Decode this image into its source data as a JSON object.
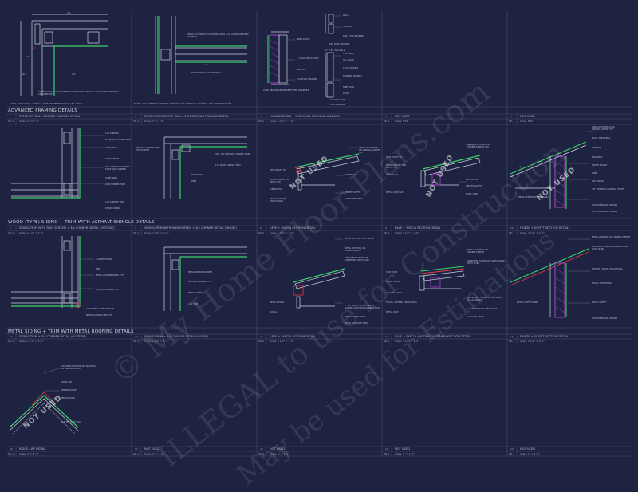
{
  "sections": {
    "advanced_framing": "ADVANCED FRAMING DETAILS",
    "wood_siding": "WOOD (TYPE) SIDING + TRIM WITH ASPHALT SHINGLE DETAILS",
    "metal_siding": "METAL SIDING + TRIM WITH METAL ROOFING DETAILS"
  },
  "row1": {
    "titles": [
      "EXTERIOR WALL CORNER FRAMING DETAIL",
      "EXTERIOR/INTERIOR WALL INTERSECTION FRAMING DETAIL",
      "LOAD BEARING + NON-LOAD BEARING HEADERS",
      "NOT USED",
      "NOT USED"
    ],
    "scales": [
      "Scale: 1\" = 1'-0\"",
      "Scale: 1\" = 1'-0\"",
      "Scale: 1 1/2\" = 1'-0\"",
      "Scale: NTS",
      "Scale: NTS"
    ],
    "numbers": [
      "1",
      "2",
      "3",
      "4",
      "5"
    ],
    "sheet_ref": "SD-1",
    "note_left": "NOTE: STRUCTURAL DETAILS TAKE PRECEDENT FOR FILE LAYOUT",
    "note_mid": "NOTE: USE WHETHER FRAMING METHOD FOR INTERIOR LEDGERS AND INTERSECTIONS",
    "corner_dims": [
      "4x1",
      "6x1",
      "4x1",
      "4x1"
    ],
    "corner_note": "CONTINUOUS ALONG ASSEMBLY WITH PRODS HOUSE AND FRAMING BOTH AS APPROPRIATE",
    "inter_labels": [
      "USE 2x4 STUDS FOR PLUMBING WALLS OR AS REQUIRED BY EXTERIOR",
      "1'-4\"",
      "HOLDOWN, IF OCC VERTICAL"
    ],
    "header_labels": [
      "INSULATION",
      "1\" RIGID INSULATION",
      "SPACER",
      "2x4 STUD FRAMING",
      "LOAD BEARING BEAM DEPTH PER ENGINEER"
    ],
    "header_small_labels": [
      "WALL",
      "HEADER",
      "NAIL STUD BEARING",
      "TOP PLATE",
      "SILL PLATE",
      "1 1/2\" CRIPPLE",
      "FRAMING SUBJECT",
      "SUBFLOOR",
      "STUD"
    ],
    "header_captions": [
      "NON LOAD BEARING",
      "2\" TYP. - 2x6 WALL",
      "2x6 WALL TYP",
      "EXT. BEARING"
    ]
  },
  "row2": {
    "titles": [
      "SIDING/TRIM WITH RAIN SCREEN + 3/4 CORNER DETAIL (OUTSIDE)",
      "SIDING/TRIM WITH RAIN SCREEN + 3/4 CORNER DETAIL (INSIDE)",
      "EAVE + FASCIA SECTION DETAIL",
      "EAVE + FASCIA SECTION DETAIL",
      "FRIEZE + SOFFIT SECTION DETAIL"
    ],
    "scales": [
      "Scale: 1 1/2\" = 1'-0\"",
      "Scale: 1 1/2\" = 1'-0\"",
      "Scale: 1 1/2\" = 1'-0\"",
      "Scale: 1 1/2\" = 1'-0\"",
      "Scale: 1 1/2\" = 1'-0\""
    ],
    "numbers": [
      "6",
      "7",
      "8",
      "9",
      "10"
    ],
    "sheet_ref": "SD-1",
    "col1_labels": [
      "1x4 CORNER",
      "FLASHING CORNER TRIM",
      "WRB SEAM",
      "WRB SHEATH",
      "3/4\" VERTICAL FURRING STRIP RAIN SCREEN",
      "CONT. WRB",
      "RAIN SCREEN TRIM",
      "1x4 CORNER TRIM",
      "WOOD SIDING"
    ],
    "col2_labels": [
      "VERTICAL FURRING SEE ATTACHMENT",
      "3/4\" 1x4 INTERIOR CORNER TRIM",
      "1x4 WOOD SIDING TRIM",
      "SHEATHING",
      "WRB"
    ],
    "col3_labels": [
      "ASPHALT SHINGLE ON UNDERLAYMENT TYP",
      "DRIP EDGE TYP",
      "FASCIA BOARD PER SPECS TYP",
      "SUB FASCIA",
      "RAFTER TAIL",
      "VENTED SOFFIT",
      "TRUSS / RAFTER STRUCTURAL",
      "ROOF SHEATHING"
    ],
    "col4_labels": [
      "ASPHALT SHINGLE ON UNDERLAYMENT TYP",
      "DRIP EDGE TYP",
      "FASCIA BOARD PER SPECS TYP",
      "SUB FASCIA",
      "RAFTER TAIL",
      "VENTED SOFFIT",
      "METAL DRIP CAP",
      "CONT. VENT"
    ],
    "col5_labels": [
      "ASPHALT SHINGLE ON UNDERLAYMENT TYP",
      "ROOF SHEATHING",
      "RAFTERS",
      "BLOCKING",
      "FRIEZE BOARD",
      "WRB",
      "LAP SIDING",
      "3/4\" VERTICAL FURRING STRIPS",
      "FIBER CEMENT SOFFIT PANEL",
      "GYPSUM BOARD CEILING",
      "GYPSUM BOARD CEILING"
    ]
  },
  "row3": {
    "titles": [
      "SIDING/TRIM + 3/4 CORNER DETAIL (OUTSIDE)",
      "SIDING/TRIM + 3/4 CORNER DETAIL (INSIDE)",
      "EAVE + FASCIA SECTION DETAIL",
      "EAVE + FASCIA (HIDDEN FASTENER) SECTION DETAIL",
      "FRIEZE + SOFFIT SECTION DETAIL"
    ],
    "scales": [
      "Scale: 1 1/2\" = 1'-0\"",
      "Scale: 1 1/2\" = 1'-0\"",
      "Scale: 1 1/2\" = 1'-0\"",
      "Scale: 1 1/2\" = 1'-0\"",
      "Scale: 1 1/2\" = 1'-0\""
    ],
    "numbers": [
      "11",
      "12",
      "13",
      "14",
      "15"
    ],
    "sheet_ref": "SD-1",
    "col1_labels": [
      "1x4 SHEATHING",
      "WRB",
      "METAL CORNER PANEL TYP",
      "METAL J-CHANNEL TYP",
      "CLOSURE AS APPROPRIATE",
      "METAL CORNER TRIM TYP"
    ],
    "col2_labels": [
      "METAL INSIDE CORNER",
      "METAL J-CHANNEL TYP",
      "METAL SIDING",
      "1x4 TRIM"
    ],
    "col3_labels": [
      "METAL GUTTER / SEE SPECS",
      "METAL ROOFING ON UNDERLAYMENT",
      "APPROVED SUBSTRATE SHEATHING WITH CLIPS",
      "METAL FASCIA",
      "FASCIA",
      "1\" X 1\" SOFFIT ATTACHMENT NAILING CONTINUOUS EACH SIDE",
      "METAL SOFFIT PANEL",
      "METAL CLOSURE STRIP"
    ],
    "col4_labels": [
      "METAL ROOFING ON UNDERLAYMENT",
      "APPROVED SUBSTRATE SHEATHING WITH CLIPS",
      "DRIP EDGE",
      "METAL FASCIA",
      "L-FLOUR FASCIA",
      "TRUSS / RAFTER STRUCTURAL",
      "METAL DRIP",
      "METAL SOFFIT PANEL FASTENERS AT ALL EDGES",
      "1\" CONTINUOUS VENT STRIP",
      "CLOSURE STRIP"
    ],
    "col5_labels": [
      "METAL ROOFING ON UNDERLAYMENT",
      "APPROVED SUBSTRATE SHEATHING WITH CLIPS",
      "RAFTER / TRUSS STRUCTURAL",
      "FASCIA SHEATHING",
      "METAL SOFFIT PANEL",
      "METAL SOFFIT",
      "GYPSUM BOARD CEILING"
    ]
  },
  "row4": {
    "titles": [
      "RIDGE CAP DETAIL",
      "NOT USED",
      "NOT USED",
      "NOT USED",
      "NOT USED"
    ],
    "scales": [
      "Scale: 1\" = 1'-0\"",
      "Scale: 1\" = 1'-0\"",
      "Scale: 1\" = 1'-0\"",
      "Scale: 1\" = 1'-0\"",
      "Scale: 1\" = 1'-0\""
    ],
    "numbers": [
      "16",
      "17",
      "18",
      "19",
      "20"
    ],
    "sheet_ref": "SD-1",
    "ridge_labels": [
      "STANDING SEAM METAL ROOFING ON UNDERLAYMENT",
      "RIDGE CAP",
      "VENTED RIDGE",
      "ZEE CLOSURE",
      "NAIL CLOSURE SEAL"
    ]
  },
  "stamps": {
    "not_used": "NOT USED"
  },
  "watermarks": {
    "diag1": "© My Home Floor Plans.com",
    "diag2": "ILLEGAL to use for Construction",
    "diag3": "May be used for Estimations"
  },
  "colors": {
    "background": "#1d2340",
    "framing": "#cfd2df",
    "insulation": "#b03fd0",
    "finish": "#3bd16b",
    "red": "#e6394a",
    "grid": "#4a5070"
  }
}
